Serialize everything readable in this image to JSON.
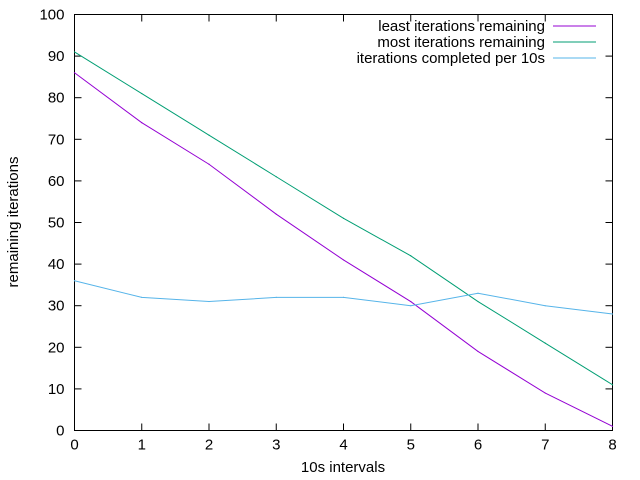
{
  "chart_data": {
    "type": "line",
    "title": "",
    "xlabel": "10s intervals",
    "ylabel": "remaining iterations",
    "xlim": [
      0,
      8
    ],
    "ylim": [
      0,
      100
    ],
    "xticks": [
      0,
      1,
      2,
      3,
      4,
      5,
      6,
      7,
      8
    ],
    "yticks": [
      0,
      10,
      20,
      30,
      40,
      50,
      60,
      70,
      80,
      90,
      100
    ],
    "grid": false,
    "legend_position": "top-right",
    "x": [
      0,
      1,
      2,
      3,
      4,
      5,
      6,
      7,
      8
    ],
    "series": [
      {
        "name": "least iterations remaining",
        "color": "#9400d3",
        "values": [
          86,
          74,
          64,
          52,
          41,
          31,
          19,
          9,
          1
        ]
      },
      {
        "name": "most iterations remaining",
        "color": "#009e73",
        "values": [
          91,
          81,
          71,
          61,
          51,
          42,
          31,
          21,
          11
        ]
      },
      {
        "name": "iterations completed per 10s",
        "color": "#56b4e9",
        "values": [
          36,
          32,
          31,
          32,
          32,
          30,
          33,
          30,
          28
        ]
      }
    ]
  }
}
